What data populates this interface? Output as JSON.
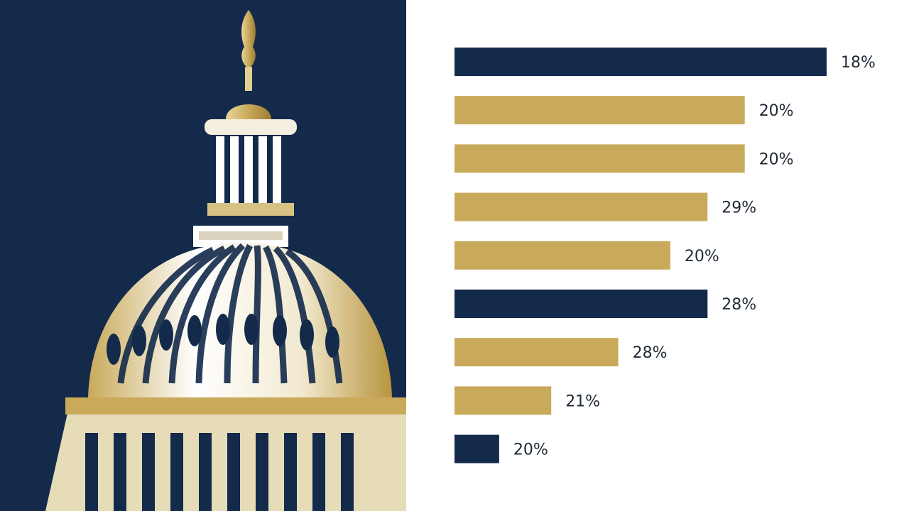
{
  "illustration": {
    "name": "capitol-dome-illustration"
  },
  "colors": {
    "navy": "#132a4b",
    "gold": "#c9aa5a",
    "background": "#ffffff"
  },
  "chart_data": {
    "type": "bar",
    "orientation": "horizontal",
    "title": "",
    "xlabel": "",
    "ylabel": "",
    "grid": false,
    "legend": "none",
    "value_range": [
      0,
      100
    ],
    "bars": [
      {
        "value": 100,
        "label": "18%",
        "color": "navy"
      },
      {
        "value": 78,
        "label": "20%",
        "color": "gold"
      },
      {
        "value": 78,
        "label": "20%",
        "color": "gold"
      },
      {
        "value": 68,
        "label": "29%",
        "color": "gold"
      },
      {
        "value": 58,
        "label": "20%",
        "color": "gold"
      },
      {
        "value": 68,
        "label": "28%",
        "color": "navy"
      },
      {
        "value": 44,
        "label": "28%",
        "color": "gold"
      },
      {
        "value": 26,
        "label": "21%",
        "color": "gold"
      },
      {
        "value": 12,
        "label": "20%",
        "color": "navy"
      }
    ]
  }
}
